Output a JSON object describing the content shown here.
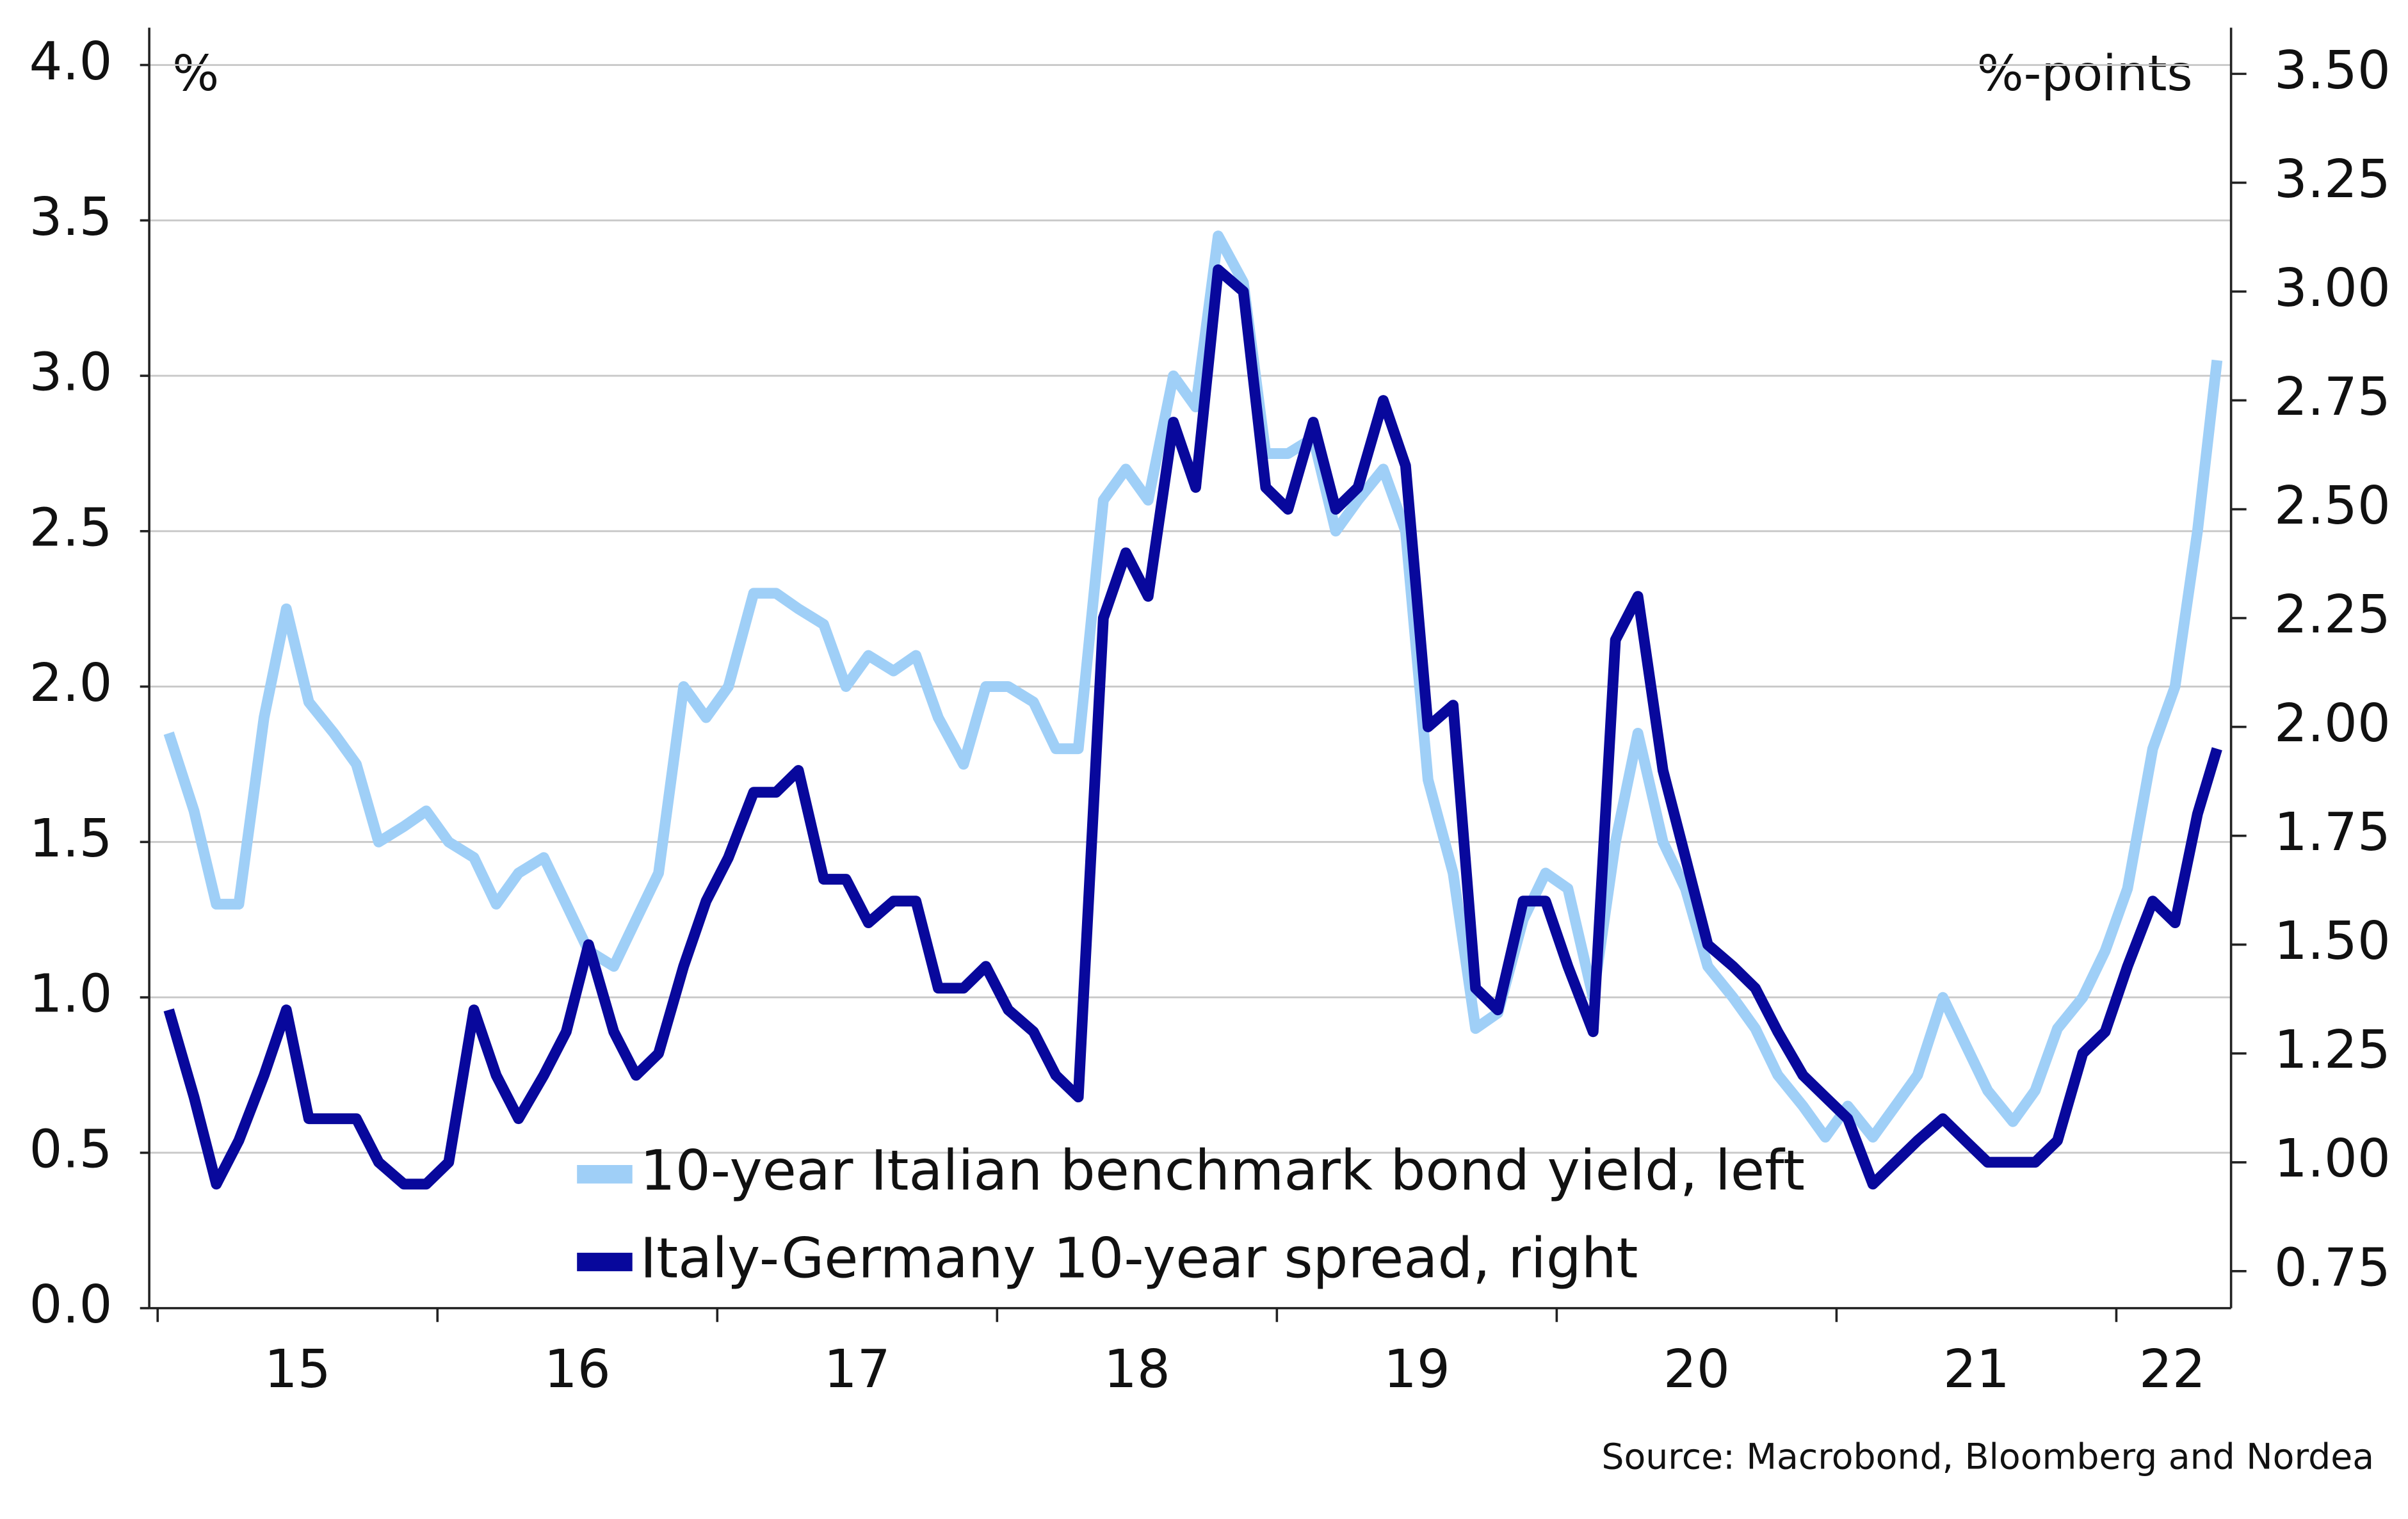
{
  "chart_data": {
    "type": "line",
    "left_unit_label": "%",
    "right_unit_label": "%-points",
    "source": "Source: Macrobond, Bloomberg and Nordea",
    "grid": true,
    "xlim": [
      2014.97,
      2022.41
    ],
    "xticks": [
      {
        "value": 2015.5,
        "label": "15"
      },
      {
        "value": 2016.5,
        "label": "16"
      },
      {
        "value": 2017.5,
        "label": "17"
      },
      {
        "value": 2018.5,
        "label": "18"
      },
      {
        "value": 2019.5,
        "label": "19"
      },
      {
        "value": 2020.5,
        "label": "20"
      },
      {
        "value": 2021.5,
        "label": "21"
      },
      {
        "value": 2022.2,
        "label": "22"
      }
    ],
    "xtick_marks": [
      2015,
      2016,
      2017,
      2018,
      2019,
      2020,
      2021,
      2022
    ],
    "ylim": [
      0,
      4.12
    ],
    "yticks": [
      {
        "value": 0,
        "label": "0.0"
      },
      0.5,
      {
        "value": 1,
        "label": "1.0"
      },
      1.5,
      {
        "value": 2,
        "label": "2.0"
      },
      2.5,
      {
        "value": 3,
        "label": "3.0"
      },
      3.5,
      {
        "value": 4,
        "label": "4.0"
      }
    ],
    "y2lim": [
      0.665,
      3.606
    ],
    "y2ticks": [
      0.75,
      {
        "value": 1,
        "label": "1.00"
      },
      1.25,
      {
        "value": 1.5,
        "label": "1.50"
      },
      1.75,
      {
        "value": 2,
        "label": "2.00"
      },
      2.25,
      {
        "value": 2.5,
        "label": "2.50"
      },
      2.75,
      {
        "value": 3,
        "label": "3.00"
      },
      3.25,
      {
        "value": 3.5,
        "label": "3.50"
      }
    ],
    "x": [
      2015.04,
      2015.13,
      2015.21,
      2015.29,
      2015.38,
      2015.46,
      2015.54,
      2015.63,
      2015.71,
      2015.79,
      2015.88,
      2015.96,
      2016.04,
      2016.13,
      2016.21,
      2016.29,
      2016.38,
      2016.46,
      2016.54,
      2016.63,
      2016.71,
      2016.79,
      2016.88,
      2016.96,
      2017.04,
      2017.13,
      2017.21,
      2017.29,
      2017.38,
      2017.46,
      2017.54,
      2017.63,
      2017.71,
      2017.79,
      2017.88,
      2017.96,
      2018.04,
      2018.13,
      2018.21,
      2018.29,
      2018.38,
      2018.46,
      2018.54,
      2018.63,
      2018.71,
      2018.79,
      2018.88,
      2018.96,
      2019.04,
      2019.13,
      2019.21,
      2019.29,
      2019.38,
      2019.46,
      2019.54,
      2019.63,
      2019.71,
      2019.79,
      2019.88,
      2019.96,
      2020.04,
      2020.13,
      2020.21,
      2020.29,
      2020.38,
      2020.46,
      2020.54,
      2020.63,
      2020.71,
      2020.79,
      2020.88,
      2020.96,
      2021.04,
      2021.13,
      2021.21,
      2021.29,
      2021.38,
      2021.46,
      2021.54,
      2021.63,
      2021.71,
      2021.79,
      2021.88,
      2021.96,
      2022.04,
      2022.13,
      2022.21,
      2022.29,
      2022.36
    ],
    "series": [
      {
        "name": "10-year Italian benchmark bond yield, left",
        "color": "#9fcff7",
        "axis": "y",
        "values": [
          1.85,
          1.6,
          1.3,
          1.3,
          1.9,
          2.25,
          1.95,
          1.85,
          1.75,
          1.5,
          1.55,
          1.6,
          1.5,
          1.45,
          1.3,
          1.4,
          1.45,
          1.3,
          1.15,
          1.1,
          1.25,
          1.4,
          2.0,
          1.9,
          2.0,
          2.3,
          2.3,
          2.25,
          2.2,
          2.0,
          2.1,
          2.05,
          2.1,
          1.9,
          1.75,
          2.0,
          2.0,
          1.95,
          1.8,
          1.8,
          2.6,
          2.7,
          2.6,
          3.0,
          2.9,
          3.45,
          3.3,
          2.75,
          2.75,
          2.8,
          2.5,
          2.6,
          2.7,
          2.5,
          1.7,
          1.4,
          0.9,
          0.95,
          1.25,
          1.4,
          1.35,
          1.0,
          1.5,
          1.85,
          1.5,
          1.35,
          1.1,
          1.0,
          0.9,
          0.75,
          0.65,
          0.55,
          0.65,
          0.55,
          0.65,
          0.75,
          1.0,
          0.85,
          0.7,
          0.6,
          0.7,
          0.9,
          1.0,
          1.15,
          1.35,
          1.8,
          2.0,
          2.5,
          3.05
        ]
      },
      {
        "name": "Italy-Germany 10-year spread, right",
        "color": "#08089c",
        "axis": "y2",
        "values": [
          1.35,
          1.15,
          0.95,
          1.05,
          1.2,
          1.35,
          1.1,
          1.1,
          1.1,
          1.0,
          0.95,
          0.95,
          1.0,
          1.35,
          1.2,
          1.1,
          1.2,
          1.3,
          1.5,
          1.3,
          1.2,
          1.25,
          1.45,
          1.6,
          1.7,
          1.85,
          1.85,
          1.9,
          1.65,
          1.65,
          1.55,
          1.6,
          1.6,
          1.4,
          1.4,
          1.45,
          1.35,
          1.3,
          1.2,
          1.15,
          2.25,
          2.4,
          2.3,
          2.7,
          2.55,
          3.05,
          3.0,
          2.55,
          2.5,
          2.7,
          2.5,
          2.55,
          2.75,
          2.6,
          2.0,
          2.05,
          1.4,
          1.35,
          1.6,
          1.6,
          1.45,
          1.3,
          2.2,
          2.3,
          1.9,
          1.7,
          1.5,
          1.45,
          1.4,
          1.3,
          1.2,
          1.15,
          1.1,
          0.95,
          1.0,
          1.05,
          1.1,
          1.05,
          1.0,
          1.0,
          1.0,
          1.05,
          1.25,
          1.3,
          1.45,
          1.6,
          1.55,
          1.8,
          1.95
        ]
      }
    ]
  }
}
